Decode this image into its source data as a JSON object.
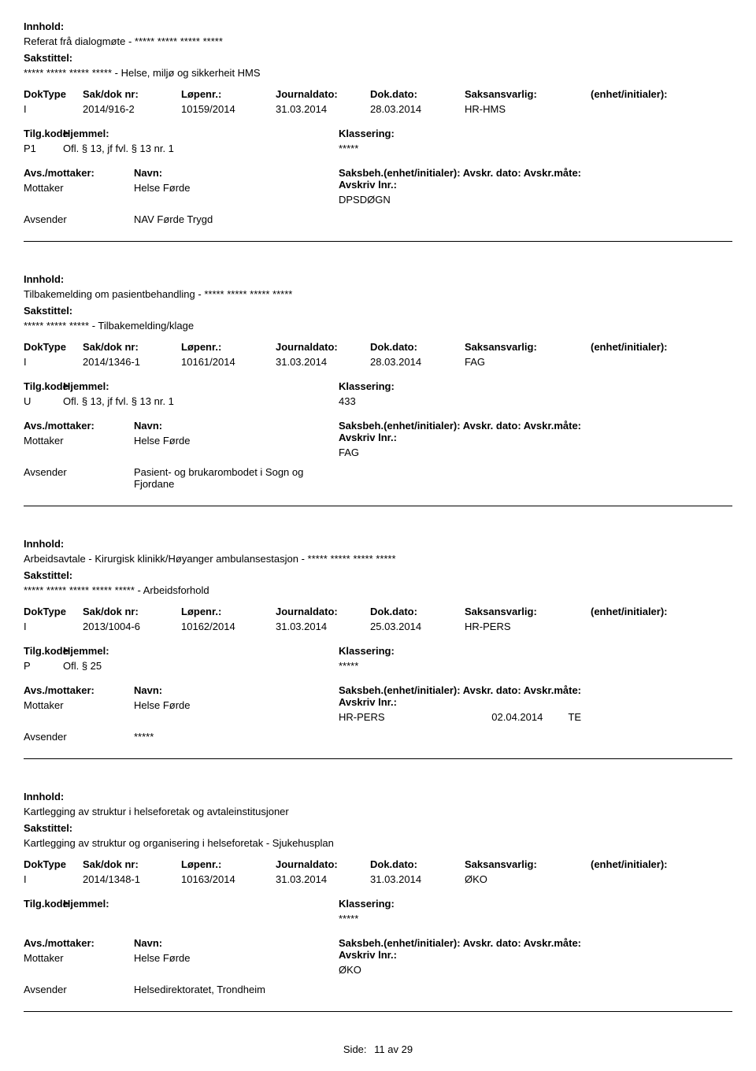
{
  "labels": {
    "innhold": "Innhold:",
    "sakstittel": "Sakstittel:",
    "doktype": "DokType",
    "sakdok": "Sak/dok nr:",
    "lopenr": "Løpenr.:",
    "journaldato": "Journaldato:",
    "dokdato": "Dok.dato:",
    "saksansvarlig": "Saksansvarlig:",
    "enhet": "(enhet/initialer):",
    "tilgkode": "Tilg.kode",
    "hjemmel": "Hjemmel:",
    "klassering": "Klassering:",
    "avsmottaker": "Avs./mottaker:",
    "navn": "Navn:",
    "saksbeh": "Saksbeh.(enhet/initialer):",
    "avskrdato": "Avskr. dato:",
    "avskrmate": "Avskr.måte:",
    "avskrivlnr": "Avskriv lnr.:",
    "mottaker": "Mottaker",
    "avsender": "Avsender",
    "side": "Side:",
    "av": "av"
  },
  "records": [
    {
      "innhold": "Referat frå dialogmøte - ***** ***** ***** *****",
      "sakstittel": "***** ***** ***** ***** - Helse, miljø og sikkerheit HMS",
      "doktype": "I",
      "sakdok": "2014/916-2",
      "lopenr": "10159/2014",
      "journaldato": "31.03.2014",
      "dokdato": "28.03.2014",
      "saksansvarlig": "HR-HMS",
      "enhet": "",
      "tilgkode": "P1",
      "hjemmel": "Ofl. § 13, jf fvl. § 13 nr. 1",
      "klassering": "*****",
      "mottaker_navn": "Helse Førde",
      "saksbeh": "DPSDØGN",
      "avskrdato": "",
      "avskrmate": "",
      "avskrivlnr": "",
      "avsender_navn": "NAV Førde Trygd"
    },
    {
      "innhold": "Tilbakemelding om pasientbehandling - ***** ***** ***** *****",
      "sakstittel": "***** ***** ***** - Tilbakemelding/klage",
      "doktype": "I",
      "sakdok": "2014/1346-1",
      "lopenr": "10161/2014",
      "journaldato": "31.03.2014",
      "dokdato": "28.03.2014",
      "saksansvarlig": "FAG",
      "enhet": "",
      "tilgkode": "U",
      "hjemmel": "Ofl. § 13, jf fvl. § 13 nr. 1",
      "klassering": "433",
      "mottaker_navn": "Helse Førde",
      "saksbeh": "FAG",
      "avskrdato": "",
      "avskrmate": "",
      "avskrivlnr": "",
      "avsender_navn": "Pasient- og brukarombodet i Sogn og Fjordane"
    },
    {
      "innhold": "Arbeidsavtale - Kirurgisk klinikk/Høyanger ambulansestasjon - ***** ***** ***** *****",
      "sakstittel": "***** ***** ***** ***** ***** - Arbeidsforhold",
      "doktype": "I",
      "sakdok": "2013/1004-6",
      "lopenr": "10162/2014",
      "journaldato": "31.03.2014",
      "dokdato": "25.03.2014",
      "saksansvarlig": "HR-PERS",
      "enhet": "",
      "tilgkode": "P",
      "hjemmel": "Ofl. § 25",
      "klassering": "*****",
      "mottaker_navn": "Helse Førde",
      "saksbeh": "HR-PERS",
      "avskrdato": "02.04.2014",
      "avskrmate": "TE",
      "avskrivlnr": "",
      "avsender_navn": "*****"
    },
    {
      "innhold": "Kartlegging av struktur i helseforetak og avtaleinstitusjoner",
      "sakstittel": "Kartlegging av struktur og organisering i helseforetak - Sjukehusplan",
      "doktype": "I",
      "sakdok": "2014/1348-1",
      "lopenr": "10163/2014",
      "journaldato": "31.03.2014",
      "dokdato": "31.03.2014",
      "saksansvarlig": "ØKO",
      "enhet": "",
      "tilgkode": "",
      "hjemmel": "",
      "klassering": "*****",
      "mottaker_navn": "Helse Førde",
      "saksbeh": "ØKO",
      "avskrdato": "",
      "avskrmate": "",
      "avskrivlnr": "",
      "avsender_navn": "Helsedirektoratet, Trondheim"
    }
  ],
  "footer": {
    "page": "11",
    "total": "29"
  }
}
